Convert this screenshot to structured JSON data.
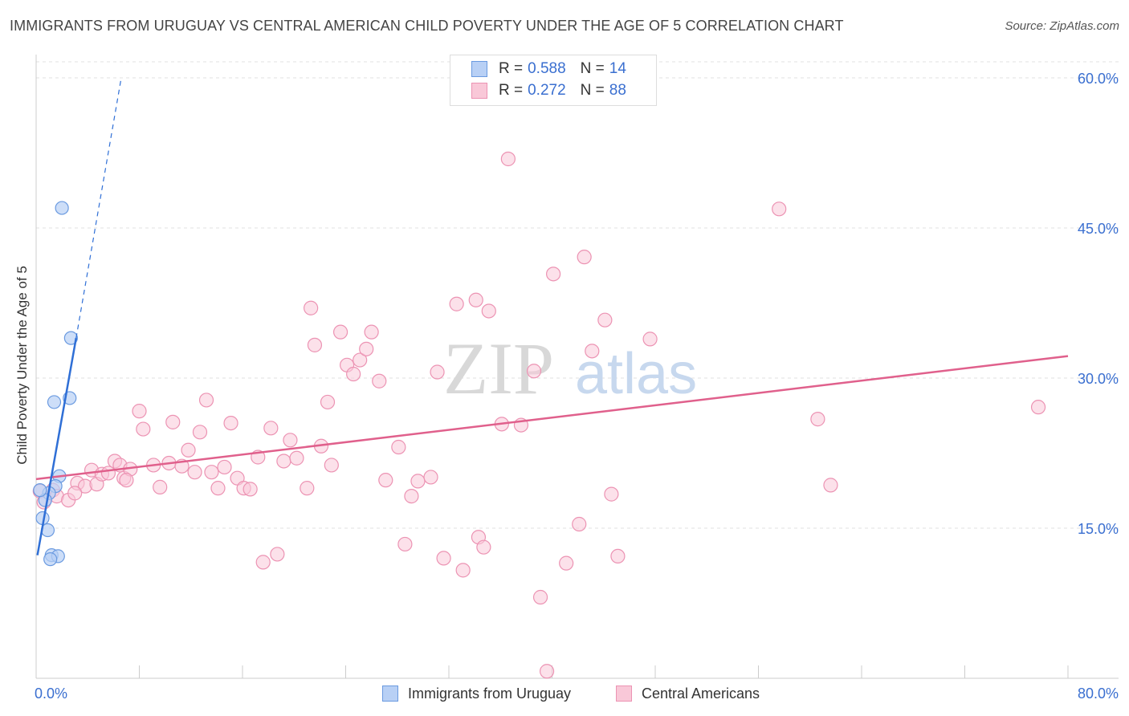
{
  "header": {
    "title": "IMMIGRANTS FROM URUGUAY VS CENTRAL AMERICAN CHILD POVERTY UNDER THE AGE OF 5 CORRELATION CHART",
    "source": "Source: ZipAtlas.com"
  },
  "watermark": {
    "zip": "ZIP",
    "atlas": "atlas"
  },
  "legend": {
    "uruguay": {
      "r_label": "R =",
      "r_value": "0.588",
      "n_label": "N =",
      "n_value": "14"
    },
    "central": {
      "r_label": "R =",
      "r_value": "0.272",
      "n_label": "N =",
      "n_value": "88"
    }
  },
  "bottom_legend": {
    "uruguay": "Immigrants from Uruguay",
    "central": "Central Americans"
  },
  "colors": {
    "uruguay_fill": "#b8d0f5",
    "uruguay_stroke": "#6a9ae0",
    "uruguay_line": "#2f6fd6",
    "central_fill": "#f9c8d8",
    "central_stroke": "#ec93b3",
    "central_line": "#e0608c",
    "tick_label": "#3a6fd0",
    "grid": "#e0e0e0"
  },
  "chart_data": {
    "type": "scatter",
    "title": "IMMIGRANTS FROM URUGUAY VS CENTRAL AMERICAN CHILD POVERTY UNDER THE AGE OF 5 CORRELATION CHART",
    "xlabel": "",
    "ylabel": "Child Poverty Under the Age of 5",
    "xlim": [
      0,
      80
    ],
    "ylim": [
      0,
      60
    ],
    "x_tick_labels": [
      "0.0%",
      "80.0%"
    ],
    "y_ticks": [
      15,
      30,
      45,
      60
    ],
    "y_tick_labels": [
      "15.0%",
      "30.0%",
      "45.0%",
      "60.0%"
    ],
    "grid": true,
    "legend_position": "top-center",
    "series": [
      {
        "name": "Immigrants from Uruguay",
        "R": 0.588,
        "N": 14,
        "trend": {
          "x": [
            0.1,
            3.1
          ],
          "y": [
            12.3,
            34.0
          ],
          "dashed_to": [
            6.6,
            60.0
          ]
        },
        "points": [
          [
            2.0,
            47.0
          ],
          [
            2.7,
            34.0
          ],
          [
            2.6,
            28.0
          ],
          [
            1.4,
            27.6
          ],
          [
            1.8,
            20.2
          ],
          [
            1.5,
            19.2
          ],
          [
            1.0,
            18.5
          ],
          [
            0.7,
            17.8
          ],
          [
            0.5,
            16.0
          ],
          [
            0.9,
            14.8
          ],
          [
            1.2,
            12.3
          ],
          [
            1.7,
            12.2
          ],
          [
            1.1,
            11.9
          ],
          [
            0.3,
            18.8
          ]
        ]
      },
      {
        "name": "Central Americans",
        "R": 0.272,
        "N": 88,
        "trend": {
          "x": [
            0,
            80
          ],
          "y": [
            19.9,
            32.2
          ]
        },
        "points": [
          [
            0.3,
            18.7
          ],
          [
            0.6,
            17.6
          ],
          [
            1.3,
            18.8
          ],
          [
            1.6,
            18.2
          ],
          [
            2.5,
            17.8
          ],
          [
            3.2,
            19.5
          ],
          [
            3.8,
            19.2
          ],
          [
            4.3,
            20.8
          ],
          [
            4.7,
            19.4
          ],
          [
            5.1,
            20.4
          ],
          [
            5.6,
            20.5
          ],
          [
            6.1,
            21.7
          ],
          [
            6.5,
            21.3
          ],
          [
            6.8,
            20.0
          ],
          [
            7.3,
            20.9
          ],
          [
            8.0,
            26.7
          ],
          [
            8.3,
            24.9
          ],
          [
            9.1,
            21.3
          ],
          [
            9.6,
            19.1
          ],
          [
            10.3,
            21.5
          ],
          [
            10.6,
            25.6
          ],
          [
            11.3,
            21.2
          ],
          [
            11.8,
            22.8
          ],
          [
            12.3,
            20.6
          ],
          [
            12.7,
            24.6
          ],
          [
            13.2,
            27.8
          ],
          [
            13.6,
            20.6
          ],
          [
            14.1,
            19.0
          ],
          [
            14.6,
            21.1
          ],
          [
            15.1,
            25.5
          ],
          [
            15.6,
            20.0
          ],
          [
            16.1,
            19.0
          ],
          [
            16.6,
            18.9
          ],
          [
            17.2,
            22.1
          ],
          [
            17.6,
            11.6
          ],
          [
            18.2,
            25.0
          ],
          [
            18.7,
            12.4
          ],
          [
            19.2,
            21.7
          ],
          [
            19.7,
            23.8
          ],
          [
            20.2,
            22.0
          ],
          [
            21.3,
            37.0
          ],
          [
            21.6,
            33.3
          ],
          [
            22.1,
            23.2
          ],
          [
            22.6,
            27.6
          ],
          [
            22.9,
            21.3
          ],
          [
            23.6,
            34.6
          ],
          [
            24.1,
            31.3
          ],
          [
            24.6,
            30.4
          ],
          [
            25.1,
            31.8
          ],
          [
            25.6,
            32.9
          ],
          [
            26.6,
            29.7
          ],
          [
            27.1,
            19.8
          ],
          [
            28.1,
            23.1
          ],
          [
            28.6,
            13.4
          ],
          [
            29.1,
            18.2
          ],
          [
            29.6,
            19.7
          ],
          [
            30.6,
            20.1
          ],
          [
            31.1,
            30.6
          ],
          [
            31.6,
            12.0
          ],
          [
            32.6,
            37.4
          ],
          [
            33.1,
            10.8
          ],
          [
            34.1,
            37.8
          ],
          [
            34.3,
            14.1
          ],
          [
            34.7,
            13.1
          ],
          [
            35.1,
            36.7
          ],
          [
            36.1,
            25.4
          ],
          [
            36.6,
            51.9
          ],
          [
            37.6,
            25.3
          ],
          [
            38.6,
            30.7
          ],
          [
            39.1,
            8.1
          ],
          [
            39.6,
            0.7
          ],
          [
            40.1,
            40.4
          ],
          [
            41.1,
            11.5
          ],
          [
            42.1,
            15.4
          ],
          [
            42.5,
            42.1
          ],
          [
            43.1,
            32.7
          ],
          [
            44.1,
            35.8
          ],
          [
            44.6,
            18.4
          ],
          [
            45.1,
            12.2
          ],
          [
            47.6,
            33.9
          ],
          [
            57.6,
            46.9
          ],
          [
            60.6,
            25.9
          ],
          [
            61.6,
            19.3
          ],
          [
            77.7,
            27.1
          ],
          [
            26.0,
            34.6
          ],
          [
            7.0,
            19.8
          ],
          [
            3.0,
            18.5
          ],
          [
            21.0,
            19.0
          ]
        ]
      }
    ]
  }
}
